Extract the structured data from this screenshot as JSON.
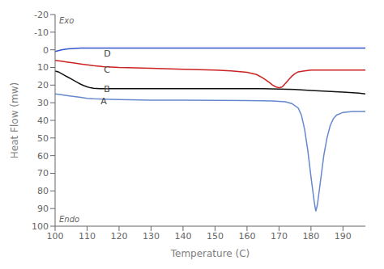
{
  "chart_data": {
    "type": "line",
    "xlabel": "Temperature (C)",
    "ylabel": "Heat Flow (mw)",
    "xlim": [
      100,
      197
    ],
    "ylim": [
      100,
      -20
    ],
    "xticks": [
      100,
      110,
      120,
      130,
      140,
      150,
      160,
      170,
      180,
      190
    ],
    "yticks": [
      -20,
      -10,
      0,
      10,
      20,
      30,
      40,
      50,
      60,
      70,
      80,
      90,
      100
    ],
    "grid": false,
    "series": [
      {
        "color": "#6688cc",
        "x": [
          100,
          102,
          104,
          106,
          108,
          110,
          112,
          115,
          120,
          130,
          140,
          150,
          160,
          165,
          168,
          170,
          172,
          174,
          176,
          177,
          178,
          179,
          180,
          181,
          181.5,
          182,
          183,
          184,
          185,
          186,
          187,
          188,
          190,
          193,
          195,
          197
        ],
        "values": [
          25,
          25.5,
          26,
          26.5,
          27,
          27.5,
          27.8,
          28,
          28.2,
          28.5,
          28.6,
          28.7,
          28.8,
          28.9,
          29.0,
          29.2,
          29.5,
          30.5,
          33,
          37,
          45,
          57,
          72,
          86,
          91.5,
          88,
          74,
          60,
          50,
          43,
          39,
          37,
          35.5,
          35,
          35,
          35
        ]
      },
      {
        "color": "#111111",
        "x": [
          100,
          101,
          102,
          103,
          104,
          105,
          106,
          107,
          108,
          109,
          110,
          111,
          112,
          114,
          116,
          120,
          130,
          140,
          150,
          160,
          165,
          170,
          175,
          180,
          185,
          190,
          195,
          197
        ],
        "values": [
          12,
          12.5,
          13.5,
          14.5,
          15.5,
          16.5,
          17.5,
          18.5,
          19.5,
          20.3,
          21,
          21.5,
          21.8,
          22,
          22,
          22,
          22,
          22,
          22,
          22,
          22,
          22.2,
          22.5,
          23,
          23.5,
          24,
          24.5,
          25
        ]
      },
      {
        "color": "#cc2222",
        "x": [
          100,
          102,
          104,
          106,
          108,
          110,
          112,
          115,
          120,
          130,
          140,
          150,
          155,
          160,
          163,
          165,
          167,
          168,
          169,
          170,
          171,
          172,
          173,
          174,
          175,
          176,
          178,
          180,
          185,
          190,
          195,
          197
        ],
        "values": [
          6,
          6.5,
          7,
          7.5,
          8,
          8.5,
          9,
          9.5,
          10,
          10.5,
          11,
          11.5,
          12,
          12.8,
          14,
          16,
          18.5,
          20,
          21,
          21.5,
          21,
          19,
          17,
          15,
          13.5,
          12.5,
          12,
          11.5,
          11.5,
          11.5,
          11.5,
          11.5
        ]
      },
      {
        "color": "#3355cc",
        "x": [
          100,
          101,
          102,
          104,
          106,
          108,
          110,
          115,
          120,
          130,
          140,
          150,
          160,
          170,
          175,
          180,
          185,
          190,
          195,
          197
        ],
        "values": [
          1,
          0.5,
          0,
          -0.5,
          -0.8,
          -1,
          -1,
          -1,
          -1,
          -1,
          -1,
          -1,
          -1,
          -1,
          -1,
          -1,
          -1,
          -1,
          -1,
          -1
        ]
      }
    ],
    "annotations": [
      {
        "text": "A",
        "x": 113,
        "y": 29
      },
      {
        "text": "B",
        "x": 114,
        "y": 22
      },
      {
        "text": "C",
        "x": 114,
        "y": 11
      },
      {
        "text": "D",
        "x": 114,
        "y": 2
      },
      {
        "text": "Exo"
      },
      {
        "text": "Endo"
      }
    ]
  }
}
